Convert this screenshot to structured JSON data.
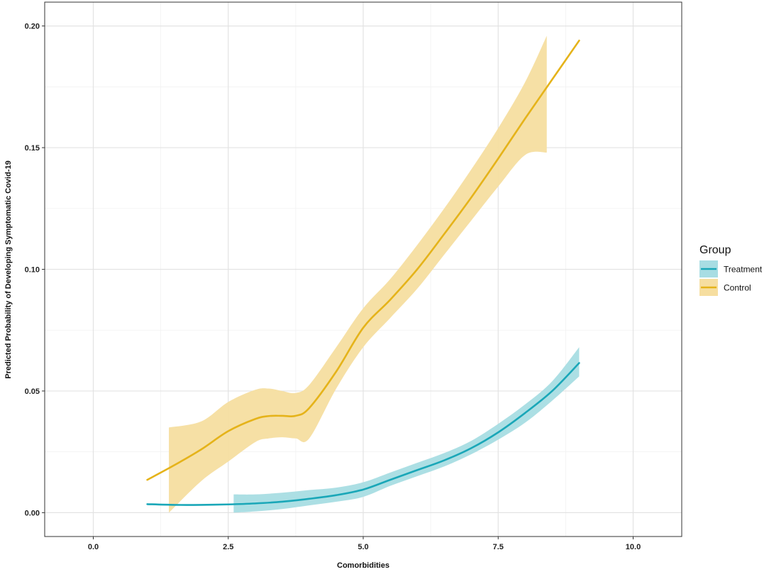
{
  "chart_data": {
    "type": "line",
    "title": "",
    "xlabel": "Comorbidities",
    "ylabel": "Predicted Probability of Developing Symptomatic Covid-19",
    "xlim": [
      -0.9,
      10.9
    ],
    "ylim": [
      -0.0098,
      0.2098
    ],
    "x_ticks": [
      0.0,
      2.5,
      5.0,
      7.5,
      10.0
    ],
    "x_tick_labels": [
      "0.0",
      "2.5",
      "5.0",
      "7.5",
      "10.0"
    ],
    "y_ticks": [
      0.0,
      0.05,
      0.1,
      0.15,
      0.2
    ],
    "y_tick_labels": [
      "0.00",
      "0.05",
      "0.10",
      "0.15",
      "0.20"
    ],
    "grid": true,
    "legend": {
      "title": "Group",
      "position": "right"
    },
    "series": [
      {
        "name": "Treatment",
        "color": "#1aa7b8",
        "band_color": "#a8dde3",
        "line": {
          "x": [
            1.0,
            1.5,
            2.0,
            2.5,
            3.0,
            3.5,
            4.0,
            4.5,
            5.0,
            5.5,
            6.0,
            6.5,
            7.0,
            7.5,
            8.0,
            8.5,
            9.0
          ],
          "y": [
            0.0035,
            0.0032,
            0.0032,
            0.0034,
            0.0038,
            0.0045,
            0.0057,
            0.0072,
            0.0095,
            0.0135,
            0.0175,
            0.0215,
            0.0265,
            0.033,
            0.041,
            0.05,
            0.0615
          ]
        },
        "band": {
          "x": [
            2.6,
            3.0,
            3.5,
            4.0,
            4.5,
            5.0,
            5.5,
            6.0,
            6.5,
            7.0,
            7.5,
            8.0,
            8.5,
            9.0
          ],
          "lower": [
            0.0,
            0.0005,
            0.0015,
            0.003,
            0.0045,
            0.0065,
            0.011,
            0.015,
            0.019,
            0.024,
            0.03,
            0.037,
            0.046,
            0.056
          ],
          "upper": [
            0.0075,
            0.0075,
            0.0082,
            0.0093,
            0.0103,
            0.0125,
            0.0165,
            0.0205,
            0.0245,
            0.0295,
            0.0365,
            0.0445,
            0.054,
            0.068
          ]
        }
      },
      {
        "name": "Control",
        "color": "#e5b31a",
        "band_color": "#f6dea0",
        "line": {
          "x": [
            1.0,
            1.5,
            2.0,
            2.5,
            3.0,
            3.25,
            3.5,
            3.75,
            4.0,
            4.5,
            5.0,
            5.5,
            6.0,
            6.5,
            7.0,
            7.5,
            8.0,
            8.5,
            9.0
          ],
          "y": [
            0.0135,
            0.0195,
            0.026,
            0.0335,
            0.0385,
            0.0397,
            0.0398,
            0.0398,
            0.043,
            0.058,
            0.076,
            0.0875,
            0.1,
            0.1145,
            0.1295,
            0.1455,
            0.162,
            0.178,
            0.194
          ]
        },
        "band": {
          "x": [
            1.4,
            2.0,
            2.5,
            3.0,
            3.25,
            3.5,
            3.75,
            4.0,
            4.5,
            5.0,
            5.5,
            6.0,
            6.5,
            7.0,
            7.5,
            8.0,
            8.4
          ],
          "lower": [
            0.0,
            0.013,
            0.021,
            0.029,
            0.0305,
            0.031,
            0.0305,
            0.0305,
            0.051,
            0.068,
            0.08,
            0.092,
            0.106,
            0.12,
            0.134,
            0.147,
            0.148
          ],
          "upper": [
            0.035,
            0.0375,
            0.0455,
            0.0505,
            0.051,
            0.05,
            0.0492,
            0.0525,
            0.068,
            0.084,
            0.096,
            0.11,
            0.125,
            0.141,
            0.158,
            0.177,
            0.196
          ]
        }
      }
    ]
  }
}
